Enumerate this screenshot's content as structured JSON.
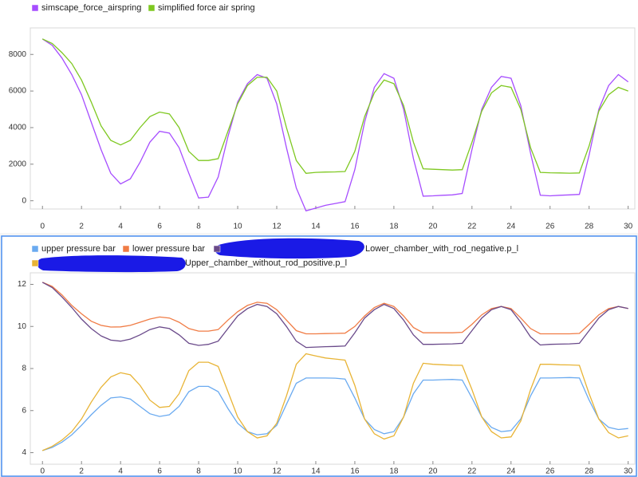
{
  "chart_data": [
    {
      "type": "line",
      "x": [
        0,
        0.5,
        1,
        1.5,
        2,
        2.5,
        3,
        3.5,
        4,
        4.5,
        5,
        5.5,
        6,
        6.5,
        7,
        7.5,
        8,
        8.5,
        9,
        9.5,
        10,
        10.5,
        11,
        11.5,
        12,
        12.5,
        13,
        13.5,
        14,
        14.5,
        15,
        15.5,
        16,
        16.5,
        17,
        17.5,
        18,
        18.5,
        19,
        19.5,
        20,
        20.5,
        21,
        21.5,
        22,
        22.5,
        23,
        23.5,
        24,
        24.5,
        25,
        25.5,
        26,
        26.5,
        27,
        27.5,
        28,
        28.5,
        29,
        29.5,
        30
      ],
      "series": [
        {
          "name": "simscape_force_airspring",
          "color": "#a64dff",
          "values": [
            8850,
            8500,
            7800,
            6900,
            5800,
            4300,
            2800,
            1500,
            920,
            1200,
            2100,
            3200,
            3800,
            3700,
            2900,
            1500,
            150,
            200,
            1300,
            3500,
            5400,
            6400,
            6900,
            6700,
            5300,
            2900,
            700,
            -550,
            -400,
            -250,
            -150,
            -50,
            1700,
            4300,
            6200,
            6950,
            6700,
            5000,
            2300,
            250,
            270,
            300,
            320,
            400,
            2800,
            5000,
            6200,
            6800,
            6700,
            5200,
            2600,
            300,
            270,
            300,
            320,
            350,
            2500,
            5000,
            6300,
            6900,
            6500
          ]
        },
        {
          "name": "simplified force air spring",
          "color": "#7ec820",
          "values": [
            8850,
            8600,
            8100,
            7500,
            6600,
            5400,
            4100,
            3300,
            3050,
            3300,
            4000,
            4600,
            4850,
            4750,
            4000,
            2700,
            2200,
            2200,
            2300,
            3800,
            5300,
            6300,
            6750,
            6750,
            6000,
            4000,
            2200,
            1500,
            1550,
            1570,
            1580,
            1600,
            2700,
            4600,
            5900,
            6600,
            6400,
            5200,
            3200,
            1750,
            1720,
            1700,
            1680,
            1700,
            3200,
            4900,
            5900,
            6300,
            6200,
            5000,
            2900,
            1550,
            1530,
            1520,
            1510,
            1520,
            3000,
            4900,
            5800,
            6200,
            6000
          ]
        }
      ],
      "xlim": [
        -0.5,
        30.3
      ],
      "xticks": [
        0,
        2,
        4,
        6,
        8,
        10,
        12,
        14,
        16,
        18,
        20,
        22,
        24,
        26,
        28,
        30
      ],
      "ylim": [
        -450,
        9450
      ],
      "yticks": [
        0,
        2000,
        4000,
        6000,
        8000
      ]
    },
    {
      "type": "line",
      "x": [
        0,
        0.5,
        1,
        1.5,
        2,
        2.5,
        3,
        3.5,
        4,
        4.5,
        5,
        5.5,
        6,
        6.5,
        7,
        7.5,
        8,
        8.5,
        9,
        9.5,
        10,
        10.5,
        11,
        11.5,
        12,
        12.5,
        13,
        13.5,
        14,
        14.5,
        15,
        15.5,
        16,
        16.5,
        17,
        17.5,
        18,
        18.5,
        19,
        19.5,
        20,
        20.5,
        21,
        21.5,
        22,
        22.5,
        23,
        23.5,
        24,
        24.5,
        25,
        25.5,
        26,
        26.5,
        27,
        27.5,
        28,
        28.5,
        29,
        29.5,
        30
      ],
      "series": [
        {
          "name": "upper pressure bar",
          "color": "#6aaaf0",
          "values": [
            4.1,
            4.25,
            4.5,
            4.85,
            5.3,
            5.8,
            6.25,
            6.6,
            6.65,
            6.55,
            6.2,
            5.85,
            5.72,
            5.8,
            6.2,
            6.9,
            7.15,
            7.15,
            6.9,
            6.1,
            5.4,
            5.0,
            4.85,
            4.9,
            5.3,
            6.3,
            7.3,
            7.55,
            7.55,
            7.55,
            7.54,
            7.5,
            6.6,
            5.6,
            5.1,
            4.9,
            5.0,
            5.7,
            6.8,
            7.45,
            7.45,
            7.47,
            7.48,
            7.45,
            6.6,
            5.7,
            5.2,
            5.0,
            5.05,
            5.6,
            6.7,
            7.55,
            7.55,
            7.56,
            7.57,
            7.55,
            6.5,
            5.6,
            5.2,
            5.1,
            5.15
          ]
        },
        {
          "name": "lower pressure bar",
          "color": "#f07c45",
          "values": [
            12.1,
            11.9,
            11.5,
            11.0,
            10.6,
            10.25,
            10.05,
            9.97,
            9.98,
            10.05,
            10.2,
            10.35,
            10.45,
            10.4,
            10.2,
            9.9,
            9.78,
            9.78,
            9.85,
            10.3,
            10.7,
            11.0,
            11.15,
            11.1,
            10.8,
            10.3,
            9.8,
            9.65,
            9.65,
            9.66,
            9.67,
            9.68,
            10.0,
            10.5,
            10.9,
            11.1,
            10.95,
            10.5,
            9.95,
            9.7,
            9.7,
            9.7,
            9.7,
            9.72,
            10.1,
            10.55,
            10.85,
            10.95,
            10.85,
            10.4,
            9.9,
            9.65,
            9.65,
            9.65,
            9.65,
            9.67,
            10.1,
            10.55,
            10.85,
            10.95,
            10.85
          ]
        },
        {
          "name": "Lower_chamber_with_rod_negative.p_l",
          "color": "#6a4a8a",
          "values": [
            12.1,
            11.85,
            11.4,
            10.9,
            10.35,
            9.9,
            9.55,
            9.35,
            9.3,
            9.4,
            9.6,
            9.85,
            9.98,
            9.9,
            9.6,
            9.2,
            9.1,
            9.15,
            9.3,
            9.9,
            10.5,
            10.85,
            11.05,
            10.95,
            10.6,
            10.0,
            9.3,
            9.0,
            9.02,
            9.04,
            9.05,
            9.07,
            9.7,
            10.4,
            10.8,
            11.05,
            10.85,
            10.3,
            9.6,
            9.15,
            9.15,
            9.16,
            9.17,
            9.2,
            9.8,
            10.4,
            10.8,
            10.95,
            10.8,
            10.2,
            9.5,
            9.12,
            9.15,
            9.16,
            9.17,
            9.2,
            9.8,
            10.4,
            10.8,
            10.95,
            10.85
          ]
        },
        {
          "name": "Upper_chamber_without_rod_positive.p_l",
          "color": "#e8b436",
          "values": [
            4.1,
            4.3,
            4.6,
            5.0,
            5.6,
            6.4,
            7.1,
            7.6,
            7.8,
            7.7,
            7.2,
            6.5,
            6.15,
            6.2,
            6.8,
            7.9,
            8.3,
            8.3,
            8.1,
            6.9,
            5.7,
            5.0,
            4.7,
            4.8,
            5.4,
            6.7,
            8.2,
            8.7,
            8.6,
            8.5,
            8.45,
            8.4,
            7.2,
            5.6,
            4.9,
            4.65,
            4.8,
            5.7,
            7.3,
            8.25,
            8.2,
            8.18,
            8.16,
            8.15,
            7.0,
            5.7,
            5.0,
            4.7,
            4.75,
            5.5,
            7.0,
            8.2,
            8.2,
            8.18,
            8.17,
            8.15,
            6.8,
            5.6,
            4.95,
            4.7,
            4.8
          ]
        }
      ],
      "xlim": [
        -0.5,
        30.3
      ],
      "xticks": [
        0,
        2,
        4,
        6,
        8,
        10,
        12,
        14,
        16,
        18,
        20,
        22,
        24,
        26,
        28,
        30
      ],
      "ylim": [
        3.45,
        12.55
      ],
      "yticks": [
        4,
        6,
        8,
        10,
        12
      ]
    }
  ]
}
